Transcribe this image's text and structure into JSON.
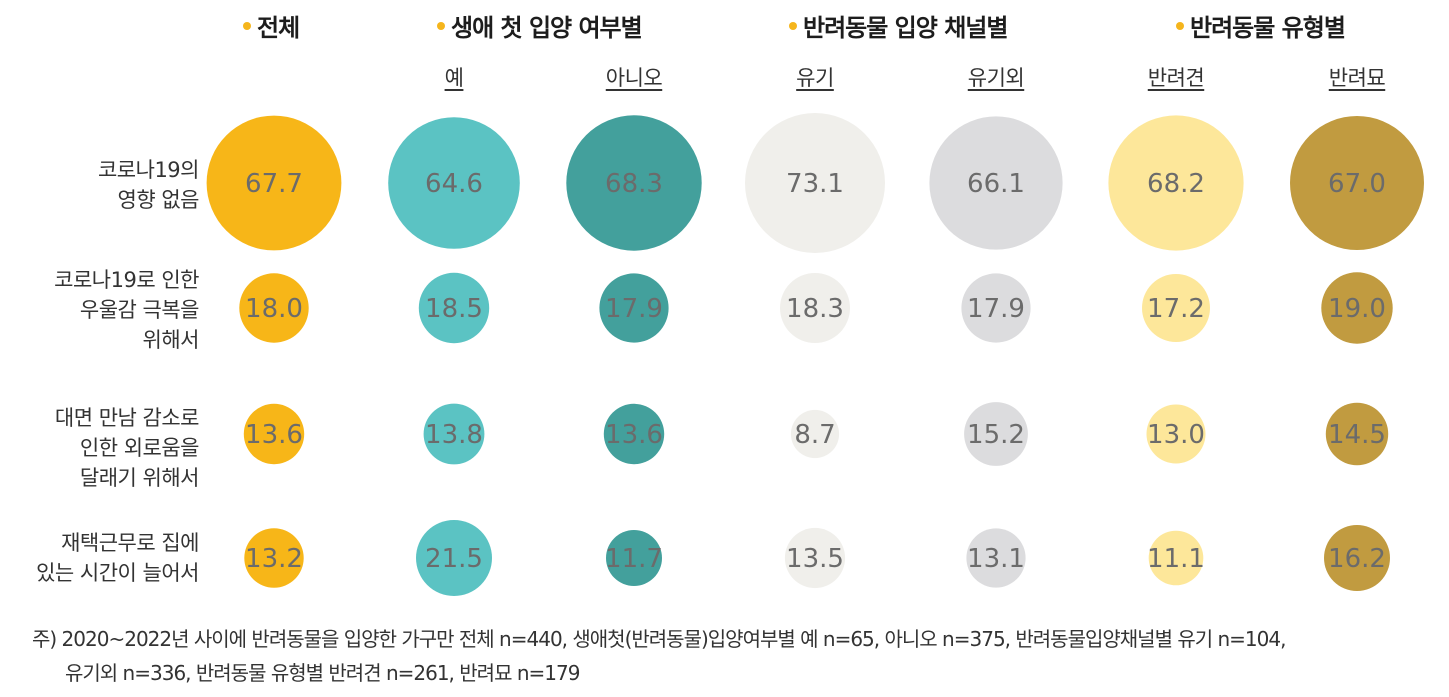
{
  "groups": [
    {
      "label": "전체"
    },
    {
      "label": "생애 첫 입양 여부별"
    },
    {
      "label": "반려동물 입양 채널별"
    },
    {
      "label": "반려동물 유형별"
    }
  ],
  "columns": [
    "",
    "예",
    "아니오",
    "유기",
    "유기외",
    "반려견",
    "반려묘"
  ],
  "colors": {
    "bullet": "#f5b51c",
    "columns": [
      "#f7b618",
      "#5bc3c3",
      "#43a09c",
      "#f0efeb",
      "#dcdcde",
      "#fde79a",
      "#c19b40"
    ]
  },
  "chart_data": {
    "type": "bubble",
    "categories": [
      "전체",
      "예",
      "아니오",
      "유기",
      "유기외",
      "반려견",
      "반려묘"
    ],
    "rows": [
      {
        "label": "코로나19의\n영향 없음",
        "values": [
          67.7,
          64.6,
          68.3,
          73.1,
          66.1,
          68.2,
          67.0
        ],
        "labels": [
          "67.7",
          "64.6",
          "68.3",
          "73.1",
          "66.1",
          "68.2",
          "67.0"
        ]
      },
      {
        "label": "코로나19로 인한\n우울감 극복을\n위해서",
        "values": [
          18.0,
          18.5,
          17.9,
          18.3,
          17.9,
          17.2,
          19.0
        ],
        "labels": [
          "18.0",
          "18.5",
          "17.9",
          "18.3",
          "17.9",
          "17.2",
          "19.0"
        ]
      },
      {
        "label": "대면 만남 감소로\n인한 외로움을\n달래기 위해서",
        "values": [
          13.6,
          13.8,
          13.6,
          8.7,
          15.2,
          13.0,
          14.5
        ],
        "labels": [
          "13.6",
          "13.8",
          "13.6",
          "8.7",
          "15.2",
          "13.0",
          "14.5"
        ]
      },
      {
        "label": "재택근무로 집에\n있는 시간이 늘어서",
        "values": [
          13.2,
          21.5,
          11.7,
          13.5,
          13.1,
          11.1,
          16.2
        ],
        "labels": [
          "13.2",
          "21.5",
          "11.7",
          "13.5",
          "13.1",
          "11.1",
          "16.2"
        ]
      }
    ]
  },
  "footnote": {
    "line1": "주) 2020~2022년 사이에 반려동물을 입양한 가구만 전체 n=440, 생애첫(반려동물)입양여부별 예 n=65, 아니오 n=375, 반려동물입양채널별 유기 n=104,",
    "line2": "유기외 n=336, 반려동물 유형별 반려견 n=261, 반려묘 n=179"
  }
}
